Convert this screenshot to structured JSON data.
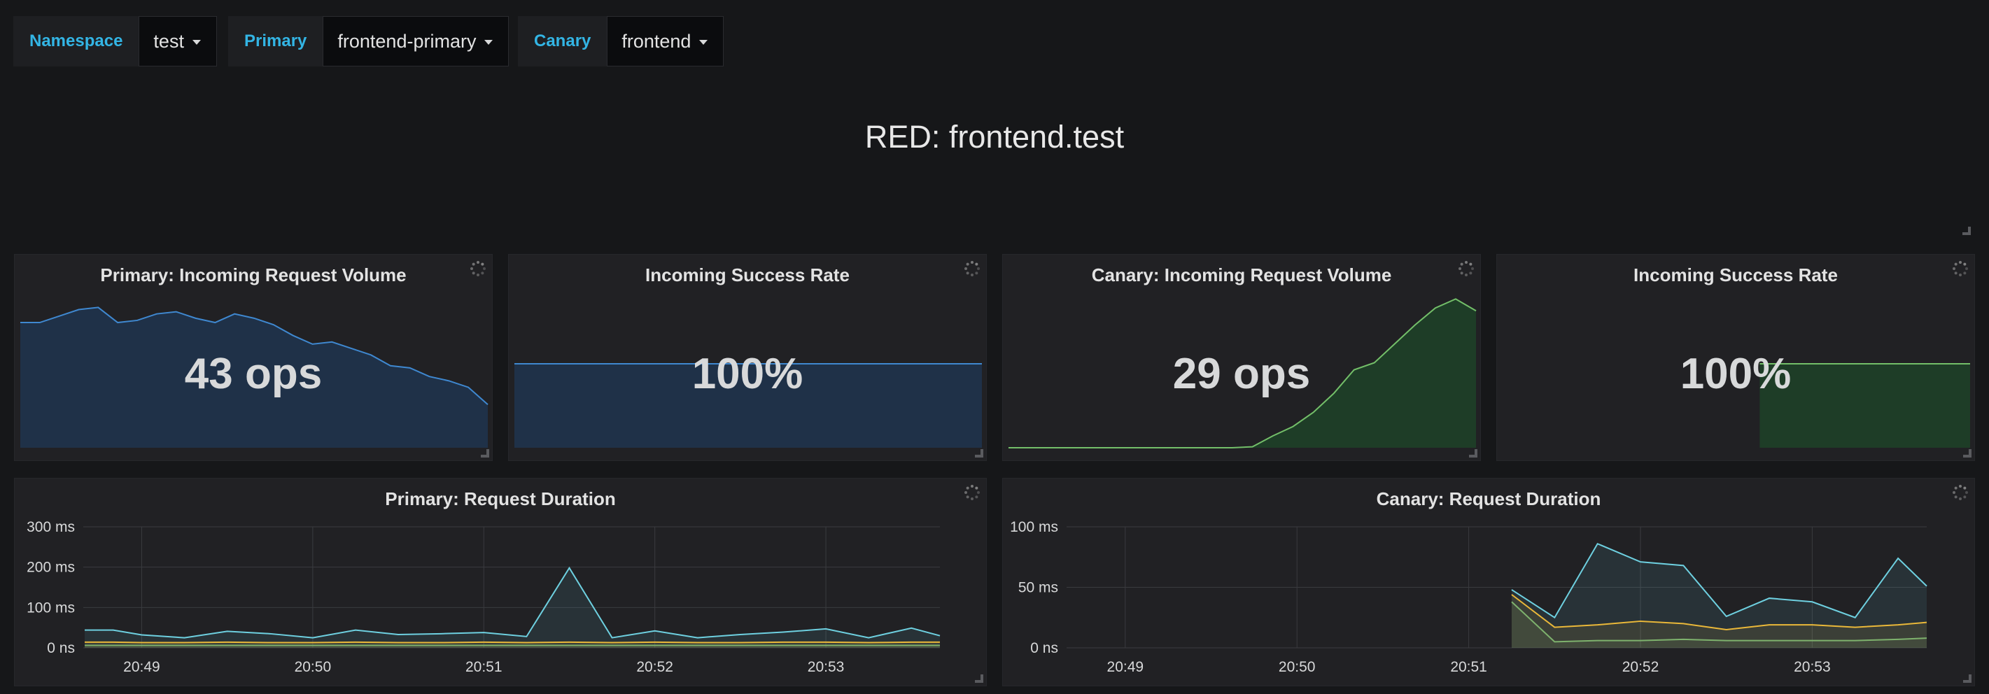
{
  "variables": [
    {
      "label": "Namespace",
      "value": "test"
    },
    {
      "label": "Primary",
      "value": "frontend-primary"
    },
    {
      "label": "Canary",
      "value": "frontend"
    }
  ],
  "dashboard": {
    "title": "RED: frontend.test"
  },
  "colors": {
    "blue": "#3f88d0",
    "green": "#73bf69",
    "cyan": "#6ed0e0",
    "yellow": "#eab839",
    "olive": "#7eb26d"
  },
  "stat_panels": [
    {
      "title": "Primary: Incoming Request Volume",
      "value": "43 ops",
      "spark_color": "blue"
    },
    {
      "title": "Incoming Success Rate",
      "value": "100%",
      "spark_color": "blue"
    },
    {
      "title": "Canary: Incoming Request Volume",
      "value": "29 ops",
      "spark_color": "green"
    },
    {
      "title": "Incoming Success Rate",
      "value": "100%",
      "spark_color": "green"
    }
  ],
  "graph_panels": [
    {
      "title": "Primary: Request Duration"
    },
    {
      "title": "Canary: Request Duration"
    }
  ],
  "chart_data": [
    {
      "type": "area",
      "title": "Primary: Incoming Request Volume",
      "series": [
        {
          "values": [
            58,
            58,
            61,
            64,
            65,
            58,
            59,
            62,
            63,
            60,
            58,
            62,
            60,
            57,
            52,
            48,
            49,
            46,
            43,
            38,
            37,
            33,
            31,
            28,
            20
          ]
        }
      ],
      "ylim": [
        0,
        70
      ],
      "grid": false
    },
    {
      "type": "area",
      "title": "Incoming Success Rate",
      "series": [
        {
          "values": [
            100,
            100,
            100,
            100,
            100,
            100,
            100,
            100,
            100,
            100
          ]
        }
      ],
      "ylim": [
        0,
        180
      ],
      "grid": false
    },
    {
      "type": "area",
      "title": "Canary: Incoming Request Volume",
      "series": [
        {
          "values": [
            0,
            0,
            0,
            0,
            0,
            0,
            0,
            0,
            0,
            0,
            0,
            0,
            0.2,
            2.5,
            4.5,
            7.5,
            11.5,
            16.5,
            18,
            22,
            26,
            29.6,
            31.5,
            29
          ]
        }
      ],
      "ylim": [
        0,
        32
      ],
      "grid": false
    },
    {
      "type": "area",
      "title": "Incoming Success Rate",
      "series": [
        {
          "values": [
            null,
            null,
            null,
            null,
            null,
            null,
            null,
            null,
            null,
            null,
            null,
            100,
            100,
            100,
            100,
            100,
            100,
            100,
            100,
            100,
            100
          ]
        }
      ],
      "ylim": [
        0,
        180
      ],
      "grid": false
    },
    {
      "type": "line",
      "title": "Primary: Request Duration",
      "x": [
        "20:48:40",
        "20:48:50",
        "20:49:00",
        "20:49:15",
        "20:49:30",
        "20:49:45",
        "20:50:00",
        "20:50:15",
        "20:50:30",
        "20:50:45",
        "20:51:00",
        "20:51:15",
        "20:51:30",
        "20:51:45",
        "20:52:00",
        "20:52:15",
        "20:52:30",
        "20:52:45",
        "20:53:00",
        "20:53:15",
        "20:53:30",
        "20:53:40"
      ],
      "series": [
        {
          "values": [
            44,
            44,
            32,
            25,
            41,
            35,
            25,
            44,
            33,
            35,
            38,
            28,
            198,
            25,
            42,
            25,
            33,
            39,
            47,
            25,
            49,
            30
          ]
        },
        {
          "values": [
            14,
            14,
            13,
            13,
            14,
            13,
            13,
            14,
            13,
            13,
            14,
            13,
            14,
            13,
            14,
            13,
            13,
            14,
            14,
            13,
            14,
            14
          ]
        },
        {
          "values": [
            6,
            6,
            6,
            6,
            6,
            6,
            6,
            6,
            6,
            6,
            6,
            6,
            6,
            6,
            6,
            6,
            6,
            6,
            6,
            6,
            6,
            6
          ]
        }
      ],
      "xlim": [
        "20:48:40",
        "20:53:40"
      ],
      "ylim": [
        0,
        300
      ],
      "x_tick_labels": [
        "20:49",
        "20:50",
        "20:51",
        "20:52",
        "20:53"
      ],
      "y_tick_labels": [
        "300 ms",
        "200 ms",
        "100 ms",
        "0 ns"
      ],
      "grid": true
    },
    {
      "type": "line",
      "title": "Canary: Request Duration",
      "x": [
        "20:51:15",
        "20:51:30",
        "20:51:45",
        "20:52:00",
        "20:52:15",
        "20:52:30",
        "20:52:45",
        "20:53:00",
        "20:53:15",
        "20:53:30",
        "20:53:40"
      ],
      "series": [
        {
          "values": [
            48,
            25,
            86,
            71,
            68,
            26,
            41,
            38,
            25,
            74,
            51
          ]
        },
        {
          "values": [
            44,
            17,
            19,
            22,
            20,
            15,
            19,
            19,
            17,
            19,
            21
          ]
        },
        {
          "values": [
            38,
            5,
            6,
            6,
            7,
            6,
            6,
            6,
            6,
            7,
            8
          ]
        }
      ],
      "xlim": [
        "20:48:40",
        "20:53:40"
      ],
      "ylim": [
        0,
        100
      ],
      "x_tick_labels": [
        "20:49",
        "20:50",
        "20:51",
        "20:52",
        "20:53"
      ],
      "y_tick_labels": [
        "100 ms",
        "50 ms",
        "0 ns"
      ],
      "grid": true
    }
  ]
}
